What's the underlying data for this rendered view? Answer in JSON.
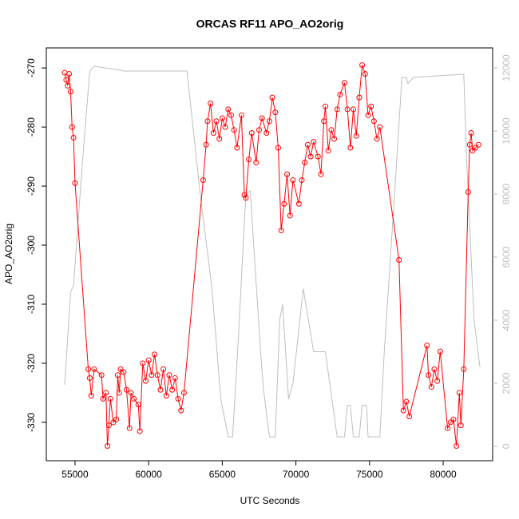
{
  "chart_data": {
    "type": "line",
    "title": "ORCAS RF11 APO_AO2orig",
    "x_label": "UTC Seconds",
    "y_label": "APO_AO2orig",
    "xlim": [
      53050,
      83360
    ],
    "xticks": [
      55000,
      60000,
      65000,
      70000,
      75000,
      80000
    ],
    "ylim": [
      -336.5,
      -266.6
    ],
    "yticks": [
      -330,
      -320,
      -310,
      -300,
      -290,
      -280,
      -270
    ],
    "y2lim": [
      -456,
      12633
    ],
    "y2ticks": [
      0,
      2000,
      4000,
      6000,
      8000,
      10000,
      12000
    ],
    "series": [
      {
        "color": "#ff0000",
        "markers": true,
        "x": [
          54300,
          54400,
          54500,
          54600,
          54700,
          54800,
          54900,
          55000,
          55900,
          56000,
          56100,
          56300,
          56800,
          56900,
          57100,
          57200,
          57300,
          57400,
          57600,
          57800,
          57900,
          58000,
          58100,
          58300,
          58500,
          58700,
          58800,
          59000,
          59300,
          59400,
          59600,
          59800,
          60000,
          60200,
          60400,
          60600,
          60800,
          61000,
          61200,
          61400,
          61600,
          61800,
          62000,
          62200,
          62400,
          63700,
          63900,
          64000,
          64200,
          64400,
          64600,
          64800,
          65000,
          65200,
          65400,
          65600,
          65800,
          66000,
          66300,
          66500,
          66600,
          66800,
          67000,
          67300,
          67500,
          67700,
          68000,
          68200,
          68400,
          68600,
          68800,
          69000,
          69200,
          69400,
          69600,
          69800,
          70200,
          70400,
          70600,
          70800,
          71000,
          71200,
          71500,
          71700,
          71900,
          72000,
          72200,
          72400,
          72600,
          72800,
          73000,
          73300,
          73500,
          73700,
          73900,
          74100,
          74300,
          74500,
          74700,
          74900,
          75100,
          75300,
          75500,
          75700,
          77000,
          77300,
          77500,
          77700,
          78900,
          79000,
          79200,
          79400,
          79600,
          79800,
          80300,
          80500,
          80700,
          80900,
          81100,
          81200,
          81400,
          81700,
          81800,
          81900,
          82000,
          82200,
          82400
        ],
        "values": [
          -270.8,
          -272,
          -273,
          -271,
          -274,
          -280,
          -281.8,
          -289.5,
          -321,
          -322.5,
          -325.5,
          -321,
          -322,
          -326,
          -325,
          -334,
          -330.5,
          -326,
          -330,
          -329.5,
          -322,
          -325,
          -321,
          -321.5,
          -324.5,
          -331,
          -325,
          -326,
          -327,
          -331.5,
          -320,
          -323,
          -319.5,
          -322,
          -318.5,
          -322,
          -324.5,
          -321,
          -325.5,
          -322,
          -324.5,
          -322.5,
          -326,
          -328,
          -325,
          -289,
          -283,
          -279,
          -276,
          -281,
          -279,
          -282,
          -278.5,
          -280,
          -277,
          -278,
          -280.5,
          -283.5,
          -278,
          -291.5,
          -292,
          -285.5,
          -281,
          -286,
          -280.5,
          -278.5,
          -281,
          -279,
          -275,
          -277.5,
          -283.5,
          -297.5,
          -293,
          -288,
          -295,
          -289,
          -293,
          -289,
          -286,
          -283,
          -285,
          -282.5,
          -285,
          -288,
          -279,
          -276.5,
          -284,
          -280.5,
          -282,
          -277,
          -274.5,
          -272.5,
          -277,
          -283.5,
          -277,
          -281.5,
          -275,
          -269.5,
          -271,
          -278,
          -276.5,
          -279,
          -282,
          -280,
          -302.5,
          -328,
          -326.5,
          -329,
          -317,
          -322,
          -324,
          -321,
          -323,
          -318,
          -331,
          -330,
          -329.5,
          -334,
          -325,
          -330.5,
          -321,
          -291,
          -283,
          -281,
          -284,
          -283.5,
          -283
        ]
      },
      {
        "color": "#bebebe",
        "axis": "y2",
        "markers": false,
        "x": [
          54300,
          54700,
          54900,
          55500,
          56000,
          56300,
          57800,
          58300,
          62600,
          63500,
          64300,
          64900,
          65400,
          65700,
          66100,
          66600,
          66900,
          67600,
          67800,
          68200,
          68600,
          68900,
          69100,
          69500,
          69800,
          70500,
          71200,
          72000,
          72800,
          73300,
          73500,
          73700,
          73900,
          74300,
          74500,
          74800,
          74900,
          75700,
          76000,
          76700,
          77200,
          77500,
          77600,
          78000,
          81400,
          81600,
          82100,
          82500
        ],
        "values": [
          1950,
          4900,
          5100,
          9000,
          11900,
          12050,
          11950,
          11900,
          11900,
          8000,
          5000,
          1500,
          300,
          300,
          3500,
          8000,
          8100,
          3000,
          1800,
          300,
          300,
          4000,
          4500,
          1500,
          2000,
          5000,
          3000,
          3000,
          300,
          300,
          1300,
          1300,
          300,
          300,
          1300,
          1300,
          300,
          300,
          3000,
          8000,
          11700,
          11700,
          11500,
          11700,
          11800,
          9000,
          4000,
          2500
        ]
      }
    ]
  }
}
